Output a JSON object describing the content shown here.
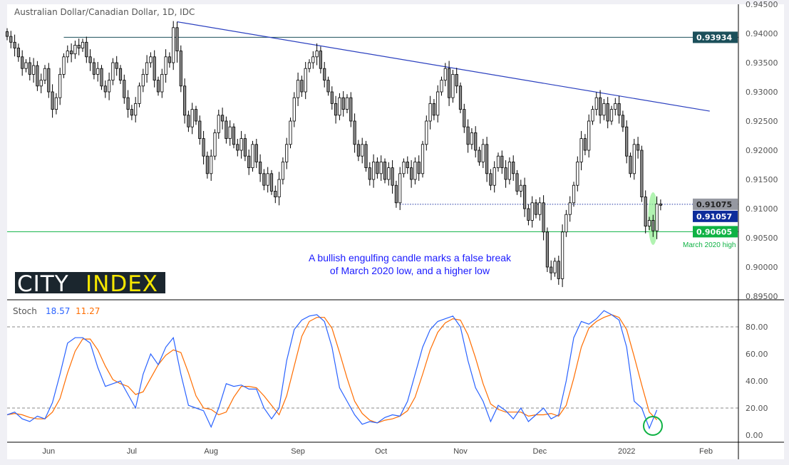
{
  "title": "Australian Dollar/Canadian Dollar, 1D, IDC",
  "logo": {
    "part1": "CITY",
    "part2": "INDEX"
  },
  "annotation": {
    "line1": "A bullish engulfing candle marks a false break",
    "line2": "of March 2020 low, and a higher low",
    "color": "#1a1aff"
  },
  "march_label": "March 2020 high",
  "stoch_legend": {
    "name": "Stoch",
    "k": "18.57",
    "d": "11.27",
    "k_color": "#2962ff",
    "d_color": "#ff6d00"
  },
  "price_badges": [
    {
      "value": "0.93934",
      "color": "#1b4f5a"
    },
    {
      "value": "0.91075",
      "color": "#9598a1"
    },
    {
      "value": "0.91057",
      "color": "#0d2d9b"
    },
    {
      "value": "0.90605",
      "color": "#0fb244"
    }
  ],
  "colors": {
    "trendline": "#2a3fbf",
    "support": "#0fb244",
    "resistance": "#1b4f5a",
    "highlight": "#90ee90"
  },
  "chart_data": [
    {
      "type": "candlestick",
      "title": "Australian Dollar/Canadian Dollar, 1D, IDC",
      "ylim": [
        0.895,
        0.945
      ],
      "y_ticks": [
        "0.94500",
        "0.94000",
        "0.93500",
        "0.93000",
        "0.92500",
        "0.92000",
        "0.91500",
        "0.91000",
        "0.90500",
        "0.90000",
        "0.89500"
      ],
      "x_ticks": [
        "Jun",
        "Jul",
        "Aug",
        "Sep",
        "Oct",
        "Nov",
        "Dec",
        "2022",
        "Feb"
      ],
      "closes": [
        0.9395,
        0.9385,
        0.9375,
        0.936,
        0.934,
        0.935,
        0.933,
        0.9345,
        0.931,
        0.932,
        0.934,
        0.93,
        0.927,
        0.929,
        0.933,
        0.936,
        0.937,
        0.9365,
        0.938,
        0.9375,
        0.9385,
        0.936,
        0.935,
        0.933,
        0.934,
        0.931,
        0.93,
        0.932,
        0.935,
        0.934,
        0.932,
        0.929,
        0.927,
        0.926,
        0.928,
        0.931,
        0.933,
        0.935,
        0.936,
        0.932,
        0.93,
        0.933,
        0.936,
        0.935,
        0.941,
        0.937,
        0.931,
        0.926,
        0.924,
        0.927,
        0.925,
        0.922,
        0.919,
        0.916,
        0.919,
        0.923,
        0.926,
        0.925,
        0.922,
        0.924,
        0.921,
        0.92,
        0.922,
        0.919,
        0.917,
        0.921,
        0.918,
        0.916,
        0.914,
        0.916,
        0.913,
        0.912,
        0.915,
        0.918,
        0.921,
        0.925,
        0.929,
        0.932,
        0.93,
        0.934,
        0.935,
        0.936,
        0.937,
        0.934,
        0.932,
        0.93,
        0.928,
        0.926,
        0.929,
        0.927,
        0.929,
        0.925,
        0.921,
        0.919,
        0.921,
        0.917,
        0.915,
        0.918,
        0.916,
        0.918,
        0.915,
        0.917,
        0.914,
        0.911,
        0.916,
        0.918,
        0.917,
        0.915,
        0.918,
        0.916,
        0.921,
        0.925,
        0.928,
        0.926,
        0.93,
        0.932,
        0.934,
        0.929,
        0.933,
        0.931,
        0.927,
        0.924,
        0.921,
        0.923,
        0.92,
        0.918,
        0.921,
        0.916,
        0.914,
        0.917,
        0.919,
        0.917,
        0.915,
        0.918,
        0.916,
        0.913,
        0.914,
        0.91,
        0.908,
        0.911,
        0.909,
        0.911,
        0.906,
        0.9,
        0.899,
        0.901,
        0.898,
        0.906,
        0.909,
        0.911,
        0.914,
        0.918,
        0.922,
        0.92,
        0.925,
        0.927,
        0.929,
        0.926,
        0.928,
        0.925,
        0.927,
        0.928,
        0.926,
        0.924,
        0.919,
        0.916,
        0.921,
        0.92,
        0.912,
        0.907,
        0.908,
        0.9062,
        0.9108,
        0.91057
      ],
      "levels": {
        "resistance": 0.93934,
        "prior_low": 0.91075,
        "last": 0.91057,
        "march_2020_high": 0.90605
      },
      "trendline": {
        "from": 0.942,
        "to": 0.9267
      }
    },
    {
      "type": "line",
      "name": "Stoch",
      "ylim": [
        0,
        100
      ],
      "y_ticks": [
        "80.00",
        "60.00",
        "40.00",
        "20.00",
        "0.00"
      ],
      "reference_lines": [
        80,
        20
      ],
      "series": [
        {
          "name": "%K",
          "color": "#2962ff",
          "values": [
            15,
            17,
            12,
            10,
            14,
            12,
            24,
            45,
            68,
            72,
            72,
            68,
            50,
            36,
            38,
            40,
            30,
            20,
            45,
            60,
            52,
            65,
            72,
            45,
            22,
            20,
            18,
            6,
            20,
            38,
            36,
            37,
            34,
            34,
            20,
            12,
            20,
            55,
            78,
            85,
            88,
            89,
            84,
            65,
            35,
            25,
            15,
            8,
            10,
            9,
            13,
            15,
            14,
            25,
            45,
            65,
            78,
            84,
            86,
            88,
            80,
            55,
            35,
            25,
            10,
            22,
            18,
            12,
            20,
            10,
            15,
            20,
            12,
            15,
            40,
            72,
            84,
            82,
            86,
            92,
            89,
            85,
            65,
            25,
            20,
            5,
            18.57
          ]
        },
        {
          "name": "%D",
          "color": "#ff6d00",
          "values": [
            15,
            16,
            15,
            13,
            12,
            12,
            17,
            27,
            46,
            62,
            71,
            71,
            63,
            51,
            41,
            38,
            36,
            30,
            32,
            42,
            52,
            59,
            63,
            61,
            46,
            29,
            20,
            19,
            15,
            17,
            28,
            36,
            36,
            35,
            29,
            22,
            15,
            29,
            51,
            73,
            84,
            87,
            87,
            79,
            61,
            42,
            25,
            16,
            11,
            9,
            11,
            12,
            14,
            18,
            28,
            45,
            63,
            76,
            83,
            86,
            85,
            74,
            57,
            38,
            23,
            19,
            17,
            17,
            17,
            14,
            15,
            15,
            16,
            14,
            22,
            42,
            65,
            79,
            84,
            87,
            89,
            87,
            78,
            58,
            37,
            17,
            11.27
          ]
        }
      ]
    }
  ]
}
